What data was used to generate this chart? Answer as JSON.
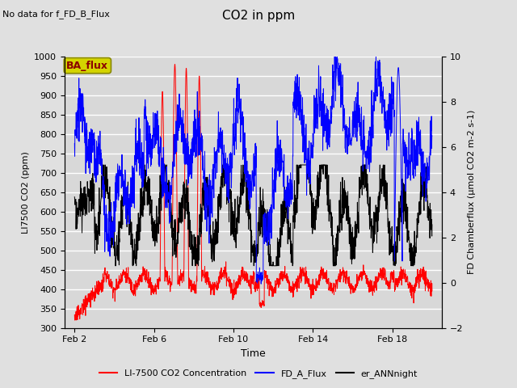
{
  "title": "CO2 in ppm",
  "top_left_text": "No data for f_FD_B_Flux",
  "xlabel": "Time",
  "ylabel_left": "LI7500 CO2 (ppm)",
  "ylabel_right": "FD Chamberflux (μmol CO2 m-2 s-1)",
  "ylim_left": [
    300,
    1000
  ],
  "ylim_right": [
    -2,
    10
  ],
  "yticks_left": [
    300,
    350,
    400,
    450,
    500,
    550,
    600,
    650,
    700,
    750,
    800,
    850,
    900,
    950,
    1000
  ],
  "yticks_right": [
    -2,
    0,
    2,
    4,
    6,
    8,
    10
  ],
  "xtick_labels": [
    "Feb 2",
    "Feb 6",
    "Feb 10",
    "Feb 14",
    "Feb 18"
  ],
  "xtick_positions": [
    2,
    6,
    10,
    14,
    18
  ],
  "xlim": [
    1.5,
    20.5
  ],
  "bg_color": "#e0e0e0",
  "plot_bg_color": "#d8d8d8",
  "grid_color": "#ffffff",
  "legend_label_red": "LI-7500 CO2 Concentration",
  "legend_label_blue": "FD_A_Flux",
  "legend_label_black": "er_ANNnight",
  "ba_flux_label": "BA_flux",
  "ba_flux_bg": "#d4d400",
  "ba_flux_text_color": "#8b0000",
  "ba_flux_edge_color": "#888800"
}
